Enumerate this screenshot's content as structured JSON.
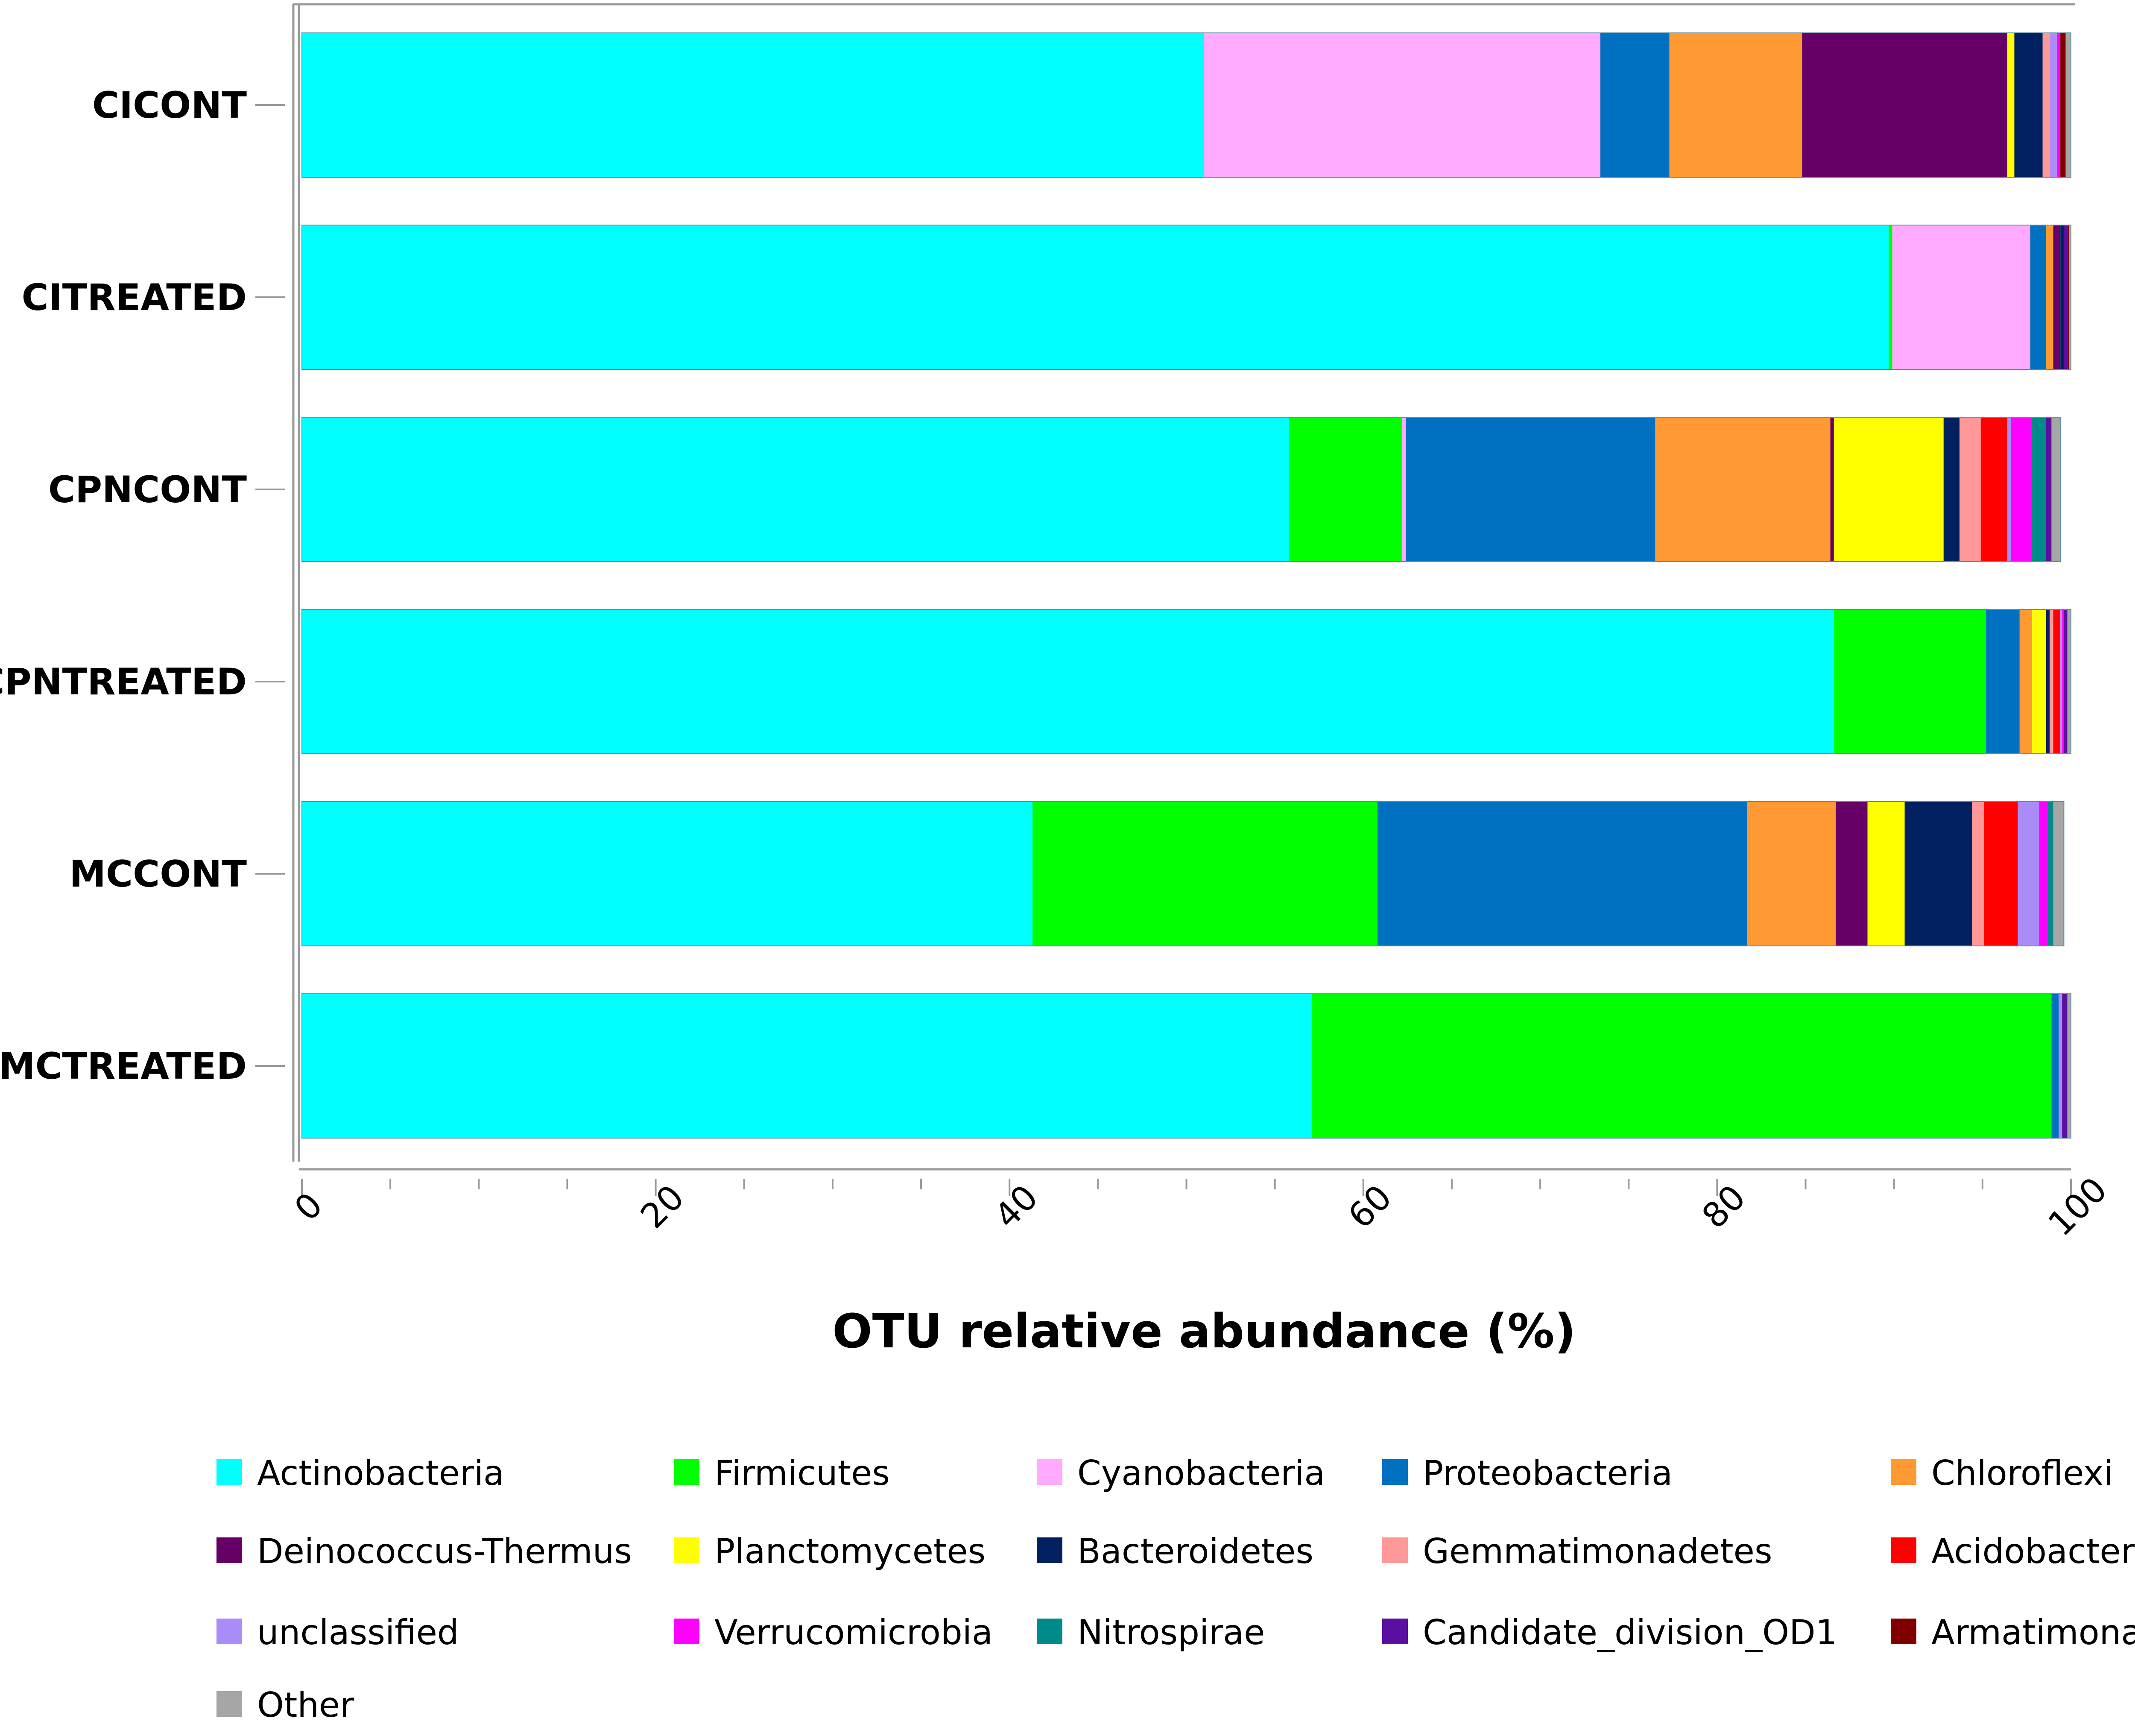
{
  "chart_data": {
    "type": "bar",
    "orientation": "horizontal",
    "stacked": true,
    "xlabel": "OTU relative abundance (%)",
    "ylabel": "",
    "title": "",
    "xlim": [
      0,
      100
    ],
    "xticks": [
      "0",
      "20",
      "40",
      "60",
      "80",
      "100"
    ],
    "grid": false,
    "legend_position": "bottom",
    "categories": [
      "CICONT",
      "CITREATED",
      "CPNCONT",
      "CPNTREATED",
      "MCCONT",
      "MCTREATED"
    ],
    "series": [
      {
        "name": "Actinobacteria",
        "color": "#00FFFF",
        "values": [
          51.0,
          89.7,
          55.8,
          86.6,
          41.3,
          57.1
        ]
      },
      {
        "name": "Firmicutes",
        "color": "#00FF00",
        "values": [
          0.0,
          0.2,
          6.4,
          8.6,
          19.5,
          41.8
        ]
      },
      {
        "name": "Cyanobacteria",
        "color": "#FFAAFF",
        "values": [
          22.4,
          7.8,
          0.2,
          0.0,
          0.0,
          0.0
        ]
      },
      {
        "name": "Proteobacteria",
        "color": "#0070C0",
        "values": [
          3.9,
          0.9,
          14.1,
          1.9,
          20.9,
          0.4
        ]
      },
      {
        "name": "Chloroflexi",
        "color": "#FF9933",
        "values": [
          7.5,
          0.4,
          9.9,
          0.7,
          5.0,
          0.0
        ]
      },
      {
        "name": "Deinococcus-Thermus",
        "color": "#660066",
        "values": [
          11.6,
          0.4,
          0.2,
          0.0,
          1.8,
          0.0
        ]
      },
      {
        "name": "Planctomycetes",
        "color": "#FFFF00",
        "values": [
          0.4,
          0.0,
          6.2,
          0.8,
          2.1,
          0.0
        ]
      },
      {
        "name": "Bacteroidetes",
        "color": "#002060",
        "values": [
          1.6,
          0.2,
          0.9,
          0.2,
          3.8,
          0.0
        ]
      },
      {
        "name": "Gemmatimonadetes",
        "color": "#FF9999",
        "values": [
          0.4,
          0.0,
          1.2,
          0.2,
          0.7,
          0.0
        ]
      },
      {
        "name": "Acidobacteria",
        "color": "#FF0000",
        "values": [
          0.0,
          0.0,
          1.5,
          0.4,
          1.9,
          0.0
        ]
      },
      {
        "name": "unclassified",
        "color": "#A98CF7",
        "values": [
          0.4,
          0.0,
          0.2,
          0.1,
          1.2,
          0.2
        ]
      },
      {
        "name": "Verrucomicrobia",
        "color": "#FF00FF",
        "values": [
          0.2,
          0.0,
          1.2,
          0.1,
          0.5,
          0.0
        ]
      },
      {
        "name": "Nitrospirae",
        "color": "#008B8B",
        "values": [
          0.0,
          0.0,
          0.8,
          0.0,
          0.3,
          0.0
        ]
      },
      {
        "name": "Candidate_division_OD1",
        "color": "#5B0FA0",
        "values": [
          0.0,
          0.2,
          0.3,
          0.2,
          0.0,
          0.3
        ]
      },
      {
        "name": "Armatimonadetes",
        "color": "#800000",
        "values": [
          0.3,
          0.1,
          0.0,
          0.0,
          0.0,
          0.0
        ]
      },
      {
        "name": "Other",
        "color": "#A6A6A6",
        "values": [
          0.3,
          0.1,
          0.5,
          0.2,
          0.6,
          0.2
        ]
      }
    ]
  }
}
